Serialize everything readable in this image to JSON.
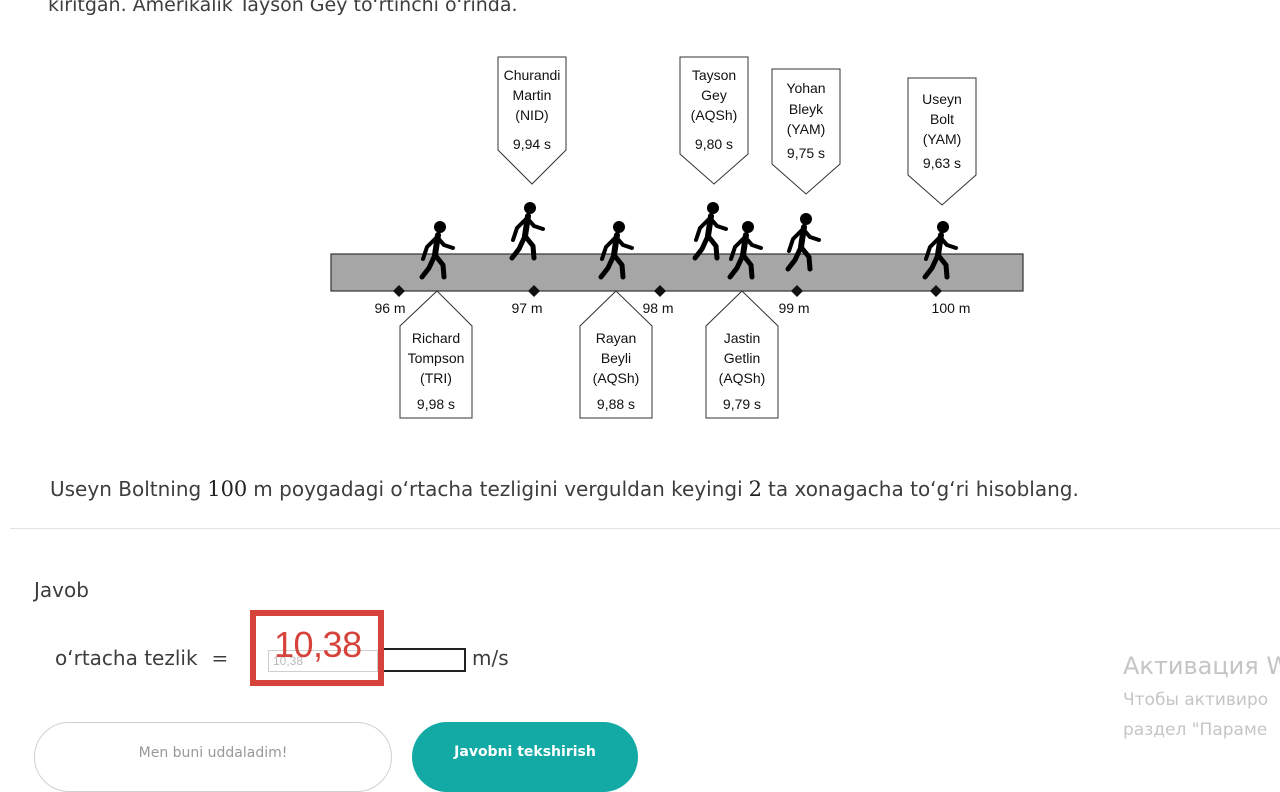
{
  "intro_text": "kiritgan. Amerikalik Tayson Gey to‘rtinchi o‘rinda.",
  "figure": {
    "markers": [
      "96 m",
      "97 m",
      "98 m",
      "99 m",
      "100 m"
    ],
    "runners_above": [
      {
        "lines": [
          "Churandi",
          "Martin",
          "(NID)"
        ],
        "time": "9,94 s"
      },
      {
        "lines": [
          "Tayson",
          "Gey",
          "(AQSh)"
        ],
        "time": "9,80 s"
      },
      {
        "lines": [
          "Yohan",
          "Bleyk",
          "(YAM)"
        ],
        "time": "9,75 s"
      },
      {
        "lines": [
          "Useyn",
          "Bolt",
          "(YAM)"
        ],
        "time": "9,63 s"
      }
    ],
    "runners_below": [
      {
        "lines": [
          "Richard",
          "Tompson",
          "(TRI)"
        ],
        "time": "9,98 s"
      },
      {
        "lines": [
          "Rayan",
          "Beyli",
          "(AQSh)"
        ],
        "time": "9,88 s"
      },
      {
        "lines": [
          "Jastin",
          "Getlin",
          "(AQSh)"
        ],
        "time": "9,79 s"
      }
    ]
  },
  "question": {
    "part1": "Useyn Boltning",
    "distance": "100",
    "part2": "m poygadagi o‘rtacha tezligini verguldan keyingi",
    "digits": "2",
    "part3": "ta xonagacha to‘g‘ri hisoblang."
  },
  "answer": {
    "heading": "Javob",
    "label": "o‘rtacha tezlik",
    "equals": "=",
    "small_input_value": "10,38",
    "unit": "m/s",
    "annotation": "10,38"
  },
  "buttons": {
    "self_check": "Men buni uddaladim!",
    "check_answer": "Javobni tekshirish"
  },
  "windows_watermark": {
    "title": "Активация W",
    "line1": "Чтобы активиро",
    "line2": "раздел \"Параме"
  },
  "colors": {
    "highlight": "#d6433b",
    "primary_button": "#13a9a5",
    "track": "#a6a6a6"
  }
}
